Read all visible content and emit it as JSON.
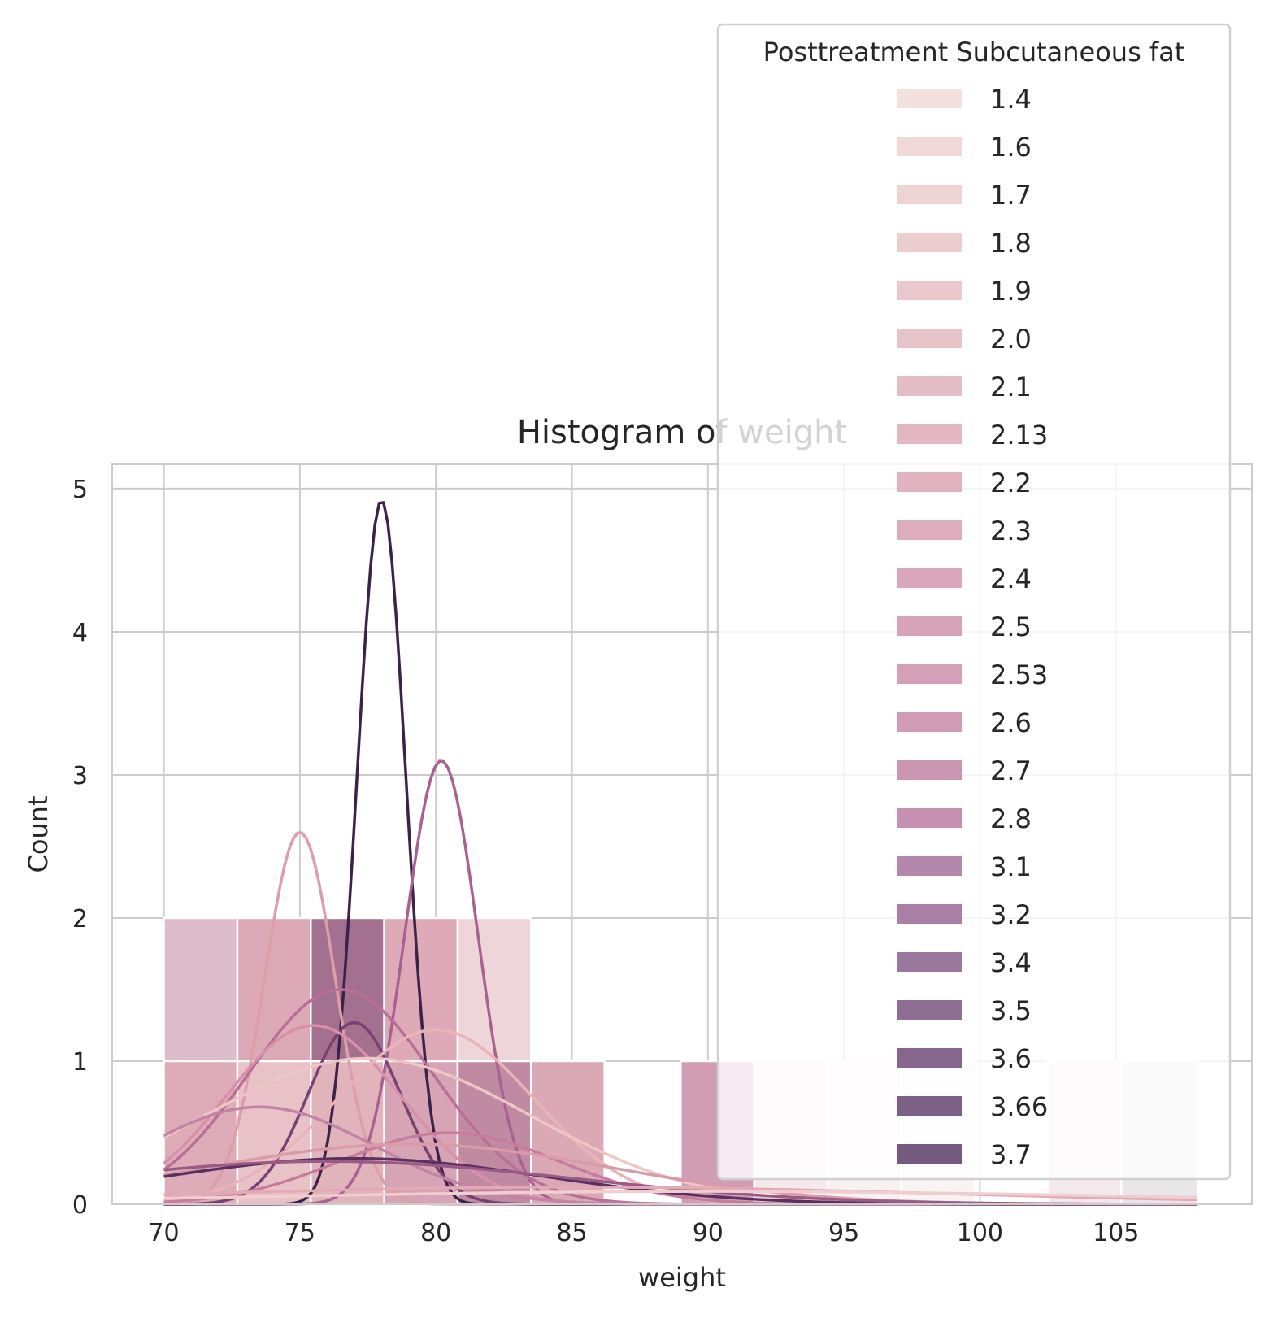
{
  "chart_data": {
    "type": "bar",
    "title": "Histogram of weight",
    "xlabel": "weight",
    "ylabel": "Count",
    "xlim": [
      68.1,
      110
    ],
    "ylim": [
      0,
      5.17
    ],
    "xticks": [
      "70",
      "75",
      "80",
      "85",
      "90",
      "95",
      "100",
      "105"
    ],
    "yticks": [
      "0",
      "1",
      "2",
      "3",
      "4",
      "5"
    ],
    "grid": true,
    "kde": true,
    "legend": {
      "title": "Posttreatment Subcutaneous fat",
      "placement": "top-right",
      "entries": [
        {
          "label": "1.4",
          "color": "#f3e1df"
        },
        {
          "label": "1.6",
          "color": "#f0d8d9"
        },
        {
          "label": "1.7",
          "color": "#eed3d5"
        },
        {
          "label": "1.8",
          "color": "#ecced1"
        },
        {
          "label": "1.9",
          "color": "#eac8ce"
        },
        {
          "label": "2.0",
          "color": "#e7c3ca"
        },
        {
          "label": "2.1",
          "color": "#e5bdc7"
        },
        {
          "label": "2.13",
          "color": "#e3b8c3"
        },
        {
          "label": "2.2",
          "color": "#e1b3c0"
        },
        {
          "label": "2.3",
          "color": "#deadbd"
        },
        {
          "label": "2.4",
          "color": "#dba8bb"
        },
        {
          "label": "2.5",
          "color": "#d8a3b9"
        },
        {
          "label": "2.53",
          "color": "#d49fb7"
        },
        {
          "label": "2.6",
          "color": "#d19ab5"
        },
        {
          "label": "2.7",
          "color": "#cc96b3"
        },
        {
          "label": "2.8",
          "color": "#c690b1"
        },
        {
          "label": "3.1",
          "color": "#b487ac"
        },
        {
          "label": "3.2",
          "color": "#a97fa5"
        },
        {
          "label": "3.4",
          "color": "#9a779c"
        },
        {
          "label": "3.5",
          "color": "#8f6e94"
        },
        {
          "label": "3.6",
          "color": "#86668c"
        },
        {
          "label": "3.66",
          "color": "#7d6086"
        },
        {
          "label": "3.7",
          "color": "#755a80"
        }
      ]
    },
    "bin_width": 2.7,
    "bars": [
      {
        "x0": 70.0,
        "x1": 72.7,
        "y0": 1,
        "y1": 2,
        "color": "#dfbccb"
      },
      {
        "x0": 70.0,
        "x1": 72.7,
        "y0": 0,
        "y1": 1,
        "color": "#deabb8"
      },
      {
        "x0": 72.7,
        "x1": 75.4,
        "y0": 1,
        "y1": 2,
        "color": "#dcaab6"
      },
      {
        "x0": 72.7,
        "x1": 75.4,
        "y0": 0,
        "y1": 1,
        "color": "#e8c2c7"
      },
      {
        "x0": 75.4,
        "x1": 78.1,
        "y0": 1,
        "y1": 2,
        "color": "#a3708f"
      },
      {
        "x0": 75.4,
        "x1": 78.1,
        "y0": 0,
        "y1": 1,
        "color": "#e0b4ba"
      },
      {
        "x0": 78.1,
        "x1": 80.8,
        "y0": 1,
        "y1": 2,
        "color": "#dfaab7"
      },
      {
        "x0": 78.1,
        "x1": 80.8,
        "y0": 0,
        "y1": 1,
        "color": "#d6a4b4"
      },
      {
        "x0": 80.8,
        "x1": 83.5,
        "y0": 1,
        "y1": 2,
        "color": "#edd5da"
      },
      {
        "x0": 80.8,
        "x1": 83.5,
        "y0": 0,
        "y1": 1,
        "color": "#c08aa3"
      },
      {
        "x0": 83.5,
        "x1": 86.2,
        "y0": 0,
        "y1": 1,
        "color": "#dba9b5"
      },
      {
        "x0": 89.0,
        "x1": 91.7,
        "y0": 0,
        "y1": 1,
        "color": "#d09db3"
      },
      {
        "x0": 91.7,
        "x1": 94.4,
        "y0": 0,
        "y1": 1,
        "color": "#f5e9ec"
      },
      {
        "x0": 94.4,
        "x1": 97.1,
        "y0": 0,
        "y1": 1,
        "color": "#f8f1f1"
      },
      {
        "x0": 97.1,
        "x1": 99.8,
        "y0": 0,
        "y1": 1,
        "color": "#f9f3f3"
      },
      {
        "x0": 102.5,
        "x1": 105.2,
        "y0": 0,
        "y1": 1,
        "color": "#f3e8ec"
      },
      {
        "x0": 105.2,
        "x1": 108.0,
        "y0": 0,
        "y1": 1,
        "color": "#e8e6e9"
      }
    ],
    "kde_curves": [
      {
        "color": "#3b2248",
        "peak_x": 78.0,
        "peak_y": 4.92,
        "sd": 0.9
      },
      {
        "color": "#a9628f",
        "peak_x": 80.2,
        "peak_y": 3.1,
        "sd": 1.35
      },
      {
        "color": "#dc9ea9",
        "peak_x": 75.0,
        "peak_y": 2.6,
        "sd": 1.3
      },
      {
        "color": "#b96e98",
        "peak_x": 76.5,
        "peak_y": 1.5,
        "sd": 3.4
      },
      {
        "color": "#7a3f73",
        "peak_x": 77.0,
        "peak_y": 1.27,
        "sd": 1.7
      },
      {
        "color": "#d790a8",
        "peak_x": 75.5,
        "peak_y": 1.25,
        "sd": 3.2
      },
      {
        "color": "#e8b4b8",
        "peak_x": 80.0,
        "peak_y": 1.22,
        "sd": 3.6
      },
      {
        "color": "#efc6c6",
        "peak_x": 77.5,
        "peak_y": 1.02,
        "sd": 6.0
      },
      {
        "color": "#c97b9e",
        "peak_x": 80.5,
        "peak_y": 0.5,
        "sd": 4.0
      },
      {
        "color": "#c283a4",
        "peak_x": 73.5,
        "peak_y": 0.68,
        "sd": 4.2
      },
      {
        "color": "#d99aaa",
        "peak_x": 79.0,
        "peak_y": 0.42,
        "sd": 7.5
      },
      {
        "color": "#5a3060",
        "peak_x": 77.0,
        "peak_y": 0.32,
        "sd": 7.0
      },
      {
        "color": "#9a5a86",
        "peak_x": 76.0,
        "peak_y": 0.3,
        "sd": 9.0
      },
      {
        "color": "#e3aab6",
        "peak_x": 85.0,
        "peak_y": 0.12,
        "sd": 14.0
      },
      {
        "color": "#f0cdd0",
        "peak_x": 90.0,
        "peak_y": 0.09,
        "sd": 16.0
      }
    ]
  }
}
